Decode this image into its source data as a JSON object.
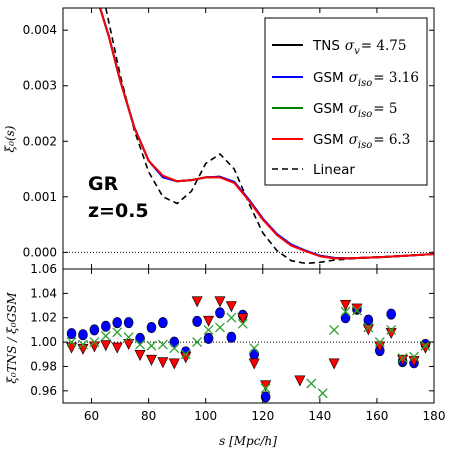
{
  "chart_data": [
    {
      "type": "line",
      "panel": "top",
      "ylabel": "ξ₀(s)",
      "xlim": [
        50,
        180
      ],
      "ylim": [
        -0.0003,
        0.0044
      ],
      "yticks": [
        0.0,
        0.001,
        0.002,
        0.003,
        0.004
      ],
      "ytick_labels": [
        "0.000",
        "0.001",
        "0.002",
        "0.003",
        "0.004"
      ],
      "annotation_lines": [
        "GR",
        "z=0.5"
      ],
      "legend_position": "top-right",
      "zero_line": {
        "y": 0.0,
        "style": "dotted"
      },
      "series": [
        {
          "name": "TNS σv = 4.75",
          "color": "#000000",
          "style": "solid",
          "x": [
            63,
            66,
            70,
            75,
            80,
            85,
            90,
            95,
            100,
            105,
            110,
            115,
            120,
            125,
            130,
            135,
            140,
            145,
            150,
            160,
            170,
            180
          ],
          "y": [
            0.0044,
            0.0039,
            0.0031,
            0.00225,
            0.00165,
            0.00137,
            0.00128,
            0.0013,
            0.00135,
            0.00136,
            0.00126,
            0.00095,
            0.0006,
            0.00032,
            0.00013,
            3e-05,
            -6e-05,
            -0.0001,
            -0.00011,
            -9e-05,
            -6e-05,
            -3e-05
          ]
        },
        {
          "name": "GSM σiso = 3.16",
          "color": "#0000ff",
          "style": "solid",
          "x": [
            63,
            66,
            70,
            75,
            80,
            85,
            90,
            95,
            100,
            105,
            110,
            115,
            120,
            125,
            130,
            135,
            140,
            145,
            150,
            160,
            170,
            180
          ],
          "y": [
            0.0044,
            0.0039,
            0.0031,
            0.00225,
            0.00165,
            0.00135,
            0.00128,
            0.0013,
            0.00135,
            0.00136,
            0.00127,
            0.00096,
            0.00061,
            0.00033,
            0.00014,
            3e-05,
            -6e-05,
            -0.0001,
            -0.00011,
            -9e-05,
            -6e-05,
            -3e-05
          ]
        },
        {
          "name": "GSM σiso = 5",
          "color": "#008000",
          "style": "solid",
          "x": [
            63,
            66,
            70,
            75,
            80,
            85,
            90,
            95,
            100,
            105,
            110,
            115,
            120,
            125,
            130,
            135,
            140,
            145,
            150,
            160,
            170,
            180
          ],
          "y": [
            0.0044,
            0.0039,
            0.0031,
            0.00225,
            0.00165,
            0.00136,
            0.00128,
            0.0013,
            0.00135,
            0.00136,
            0.00126,
            0.00095,
            0.0006,
            0.00032,
            0.00013,
            3e-05,
            -6e-05,
            -0.0001,
            -0.00011,
            -9e-05,
            -6e-05,
            -3e-05
          ]
        },
        {
          "name": "GSM σiso = 6.3",
          "color": "#ff0000",
          "style": "solid",
          "x": [
            63,
            66,
            70,
            75,
            80,
            85,
            90,
            95,
            100,
            105,
            110,
            115,
            120,
            125,
            130,
            135,
            140,
            145,
            150,
            160,
            170,
            180
          ],
          "y": [
            0.0044,
            0.0039,
            0.0031,
            0.00225,
            0.00165,
            0.00138,
            0.00128,
            0.0013,
            0.00135,
            0.00135,
            0.00125,
            0.00094,
            0.00059,
            0.00031,
            0.00012,
            2e-05,
            -7e-05,
            -0.00011,
            -0.00011,
            -9e-05,
            -6e-05,
            -3e-05
          ]
        },
        {
          "name": "Linear",
          "color": "#000000",
          "style": "dashed",
          "x": [
            65,
            70,
            75,
            80,
            85,
            90,
            95,
            100,
            105,
            110,
            115,
            120,
            125,
            130,
            135,
            140,
            145,
            150,
            160,
            170,
            180
          ],
          "y": [
            0.0044,
            0.0032,
            0.0022,
            0.00145,
            0.001,
            0.00088,
            0.0011,
            0.0016,
            0.00177,
            0.0015,
            0.0009,
            0.00035,
            3e-05,
            -0.00015,
            -0.0002,
            -0.00018,
            -0.00014,
            -0.00012,
            -9e-05,
            -6e-05,
            -3e-05
          ]
        }
      ],
      "legend": [
        {
          "base": "TNS",
          "sym": "σ",
          "sub": "v",
          "eq": "= 4.75"
        },
        {
          "base": "GSM",
          "sym": "σ",
          "sub": "iso",
          "eq": "= 3.16"
        },
        {
          "base": "GSM",
          "sym": "σ",
          "sub": "iso",
          "eq": "= 5"
        },
        {
          "base": "GSM",
          "sym": "σ",
          "sub": "iso",
          "eq": "= 6.3"
        },
        {
          "base": "Linear",
          "sym": "",
          "sub": "",
          "eq": ""
        }
      ]
    },
    {
      "type": "scatter",
      "panel": "bottom",
      "xlabel": "s [Mpc/h]",
      "ylabel": "ξ₀TNS / ξ₀GSM",
      "xlim": [
        50,
        180
      ],
      "ylim": [
        0.95,
        1.06
      ],
      "xticks": [
        60,
        80,
        100,
        120,
        140,
        160,
        180
      ],
      "yticks": [
        0.96,
        0.98,
        1.0,
        1.02,
        1.04,
        1.06
      ],
      "ytick_labels": [
        "0.96",
        "0.98",
        "1.00",
        "1.02",
        "1.04",
        "1.06"
      ],
      "ref_line": {
        "y": 1.0,
        "style": "dotted"
      },
      "series": [
        {
          "name": "σiso = 3.16",
          "marker": "circle",
          "color": "#0000ff",
          "x": [
            53,
            57,
            61,
            65,
            69,
            73,
            77,
            81,
            85,
            89,
            93,
            97,
            101,
            105,
            109,
            113,
            117,
            121,
            149,
            153,
            157,
            161,
            165,
            169,
            173,
            177
          ],
          "y": [
            1.007,
            1.006,
            1.01,
            1.013,
            1.016,
            1.016,
            1.003,
            1.012,
            1.016,
            1.0,
            0.992,
            1.017,
            1.003,
            1.024,
            1.004,
            1.022,
            0.99,
            0.955,
            1.02,
            1.027,
            1.018,
            0.993,
            1.023,
            0.984,
            0.983,
            0.998
          ]
        },
        {
          "name": "σiso = 5",
          "marker": "x",
          "color": "#2ca02c",
          "x": [
            53,
            57,
            61,
            65,
            69,
            73,
            77,
            81,
            85,
            89,
            93,
            97,
            101,
            105,
            109,
            113,
            117,
            121,
            137,
            141,
            145,
            149,
            153,
            157,
            161,
            165,
            169,
            173,
            177
          ],
          "y": [
            1.0,
            0.998,
            1.0,
            1.005,
            1.008,
            1.004,
            0.998,
            0.997,
            0.998,
            0.995,
            0.99,
            1.0,
            1.01,
            1.012,
            1.02,
            1.015,
            0.995,
            0.962,
            0.966,
            0.958,
            1.01,
            1.025,
            1.026,
            1.012,
            1.0,
            1.01,
            0.987,
            0.988,
            0.997
          ]
        },
        {
          "name": "σiso = 6.3",
          "marker": "triangle-down",
          "color": "#ff0000",
          "x": [
            53,
            57,
            61,
            65,
            69,
            73,
            77,
            81,
            85,
            89,
            93,
            97,
            101,
            105,
            109,
            113,
            117,
            121,
            133,
            145,
            149,
            153,
            157,
            161,
            165,
            169,
            173,
            177
          ],
          "y": [
            0.996,
            0.995,
            0.997,
            0.998,
            0.996,
            0.999,
            0.99,
            0.986,
            0.984,
            0.983,
            0.988,
            1.034,
            1.018,
            1.034,
            1.03,
            1.02,
            0.983,
            0.965,
            0.969,
            0.983,
            1.031,
            1.028,
            1.011,
            0.997,
            1.008,
            0.986,
            0.985,
            0.996
          ]
        }
      ]
    }
  ]
}
